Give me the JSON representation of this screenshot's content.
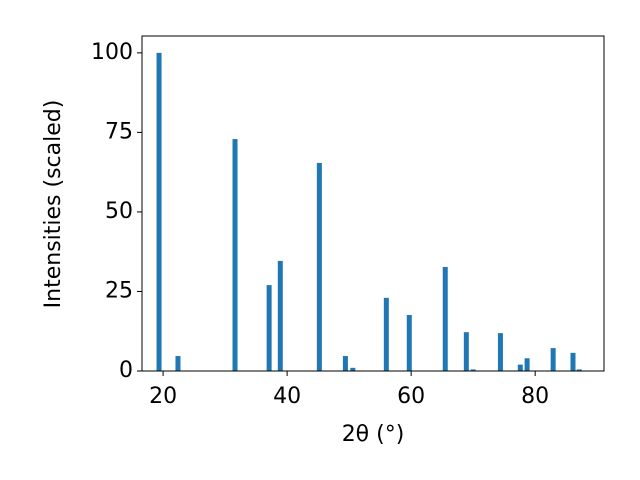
{
  "chart_data": {
    "type": "bar",
    "x": [
      19.35,
      22.4,
      31.6,
      37.1,
      38.9,
      45.2,
      49.4,
      50.6,
      56.0,
      59.7,
      65.5,
      68.9,
      70.0,
      74.4,
      77.6,
      78.7,
      82.9,
      86.1,
      87.1
    ],
    "values": [
      100,
      4.7,
      72.9,
      27,
      34.6,
      65.4,
      4.7,
      1,
      23,
      17.6,
      32.7,
      12.2,
      0.5,
      11.9,
      2,
      4,
      7.2,
      5.7,
      0.5
    ],
    "color": "#1f77b4",
    "xlabel": "2θ (°)",
    "ylabel": "Intensities (scaled)",
    "xlim": [
      16.6,
      91.1
    ],
    "xticks": [
      20,
      40,
      60,
      80
    ],
    "ylim": [
      0,
      105.3
    ],
    "yticks": [
      0,
      25,
      50,
      75,
      100
    ],
    "grid": false
  }
}
